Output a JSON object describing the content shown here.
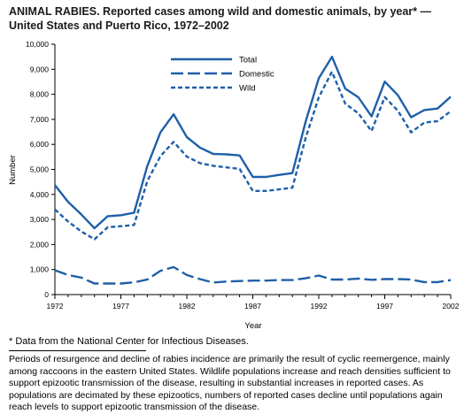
{
  "header": {
    "title_lead": "ANIMAL RABIES.",
    "title_rest": "Reported cases among wild and domestic animals, by year* — United States and Puerto Rico, 1972–2002"
  },
  "footnote": "* Data from the National Center for Infectious Diseases.",
  "description": "Periods of resurgence and decline of rabies incidence are primarily the result of cyclic reemergence, mainly among raccoons in the eastern United States. Wildlife populations increase and reach densities sufficient to support epizootic transmission of the disease, resulting in substantial increases in reported cases. As populations are decimated by these epizootics, numbers of reported cases decline until populations again reach levels to support epizootic transmission of the disease.",
  "colors": {
    "series": "#1f5fa8"
  },
  "chart_data": {
    "type": "line",
    "title": "",
    "xlabel": "Year",
    "ylabel": "Number",
    "xlim": [
      1972,
      2002
    ],
    "ylim": [
      0,
      10000
    ],
    "x_ticks": [
      1972,
      1977,
      1982,
      1987,
      1992,
      1997,
      2002
    ],
    "y_ticks": [
      0,
      1000,
      2000,
      3000,
      4000,
      5000,
      6000,
      7000,
      8000,
      9000,
      10000
    ],
    "y_tick_labels": [
      "0",
      "1,000",
      "2,000",
      "3,000",
      "4,000",
      "5,000",
      "6,000",
      "7,000",
      "8,000",
      "9,000",
      "10,000"
    ],
    "grid": false,
    "legend_position": "top-center",
    "x": [
      1972,
      1973,
      1974,
      1975,
      1976,
      1977,
      1978,
      1979,
      1980,
      1981,
      1982,
      1983,
      1984,
      1985,
      1986,
      1987,
      1988,
      1989,
      1990,
      1991,
      1992,
      1993,
      1994,
      1995,
      1996,
      1997,
      1998,
      1999,
      2000,
      2001,
      2002
    ],
    "series": [
      {
        "name": "Total",
        "style": "solid",
        "values": [
          4370,
          3700,
          3200,
          2650,
          3130,
          3170,
          3270,
          5130,
          6480,
          7200,
          6290,
          5870,
          5620,
          5600,
          5560,
          4700,
          4700,
          4780,
          4850,
          6900,
          8640,
          9500,
          8230,
          7880,
          7120,
          8510,
          7960,
          7080,
          7370,
          7430,
          7900
        ]
      },
      {
        "name": "Domestic",
        "style": "dash",
        "values": [
          970,
          780,
          680,
          440,
          440,
          440,
          490,
          600,
          950,
          1100,
          780,
          620,
          480,
          520,
          540,
          560,
          560,
          580,
          580,
          650,
          760,
          600,
          600,
          640,
          590,
          620,
          620,
          600,
          500,
          500,
          580
        ]
      },
      {
        "name": "Wild",
        "style": "dot",
        "values": [
          3400,
          2920,
          2520,
          2210,
          2690,
          2730,
          2780,
          4530,
          5530,
          6100,
          5510,
          5250,
          5140,
          5080,
          5020,
          4140,
          4140,
          4200,
          4270,
          6250,
          7880,
          8900,
          7630,
          7240,
          6530,
          7890,
          7340,
          6480,
          6870,
          6930,
          7320
        ]
      }
    ]
  }
}
